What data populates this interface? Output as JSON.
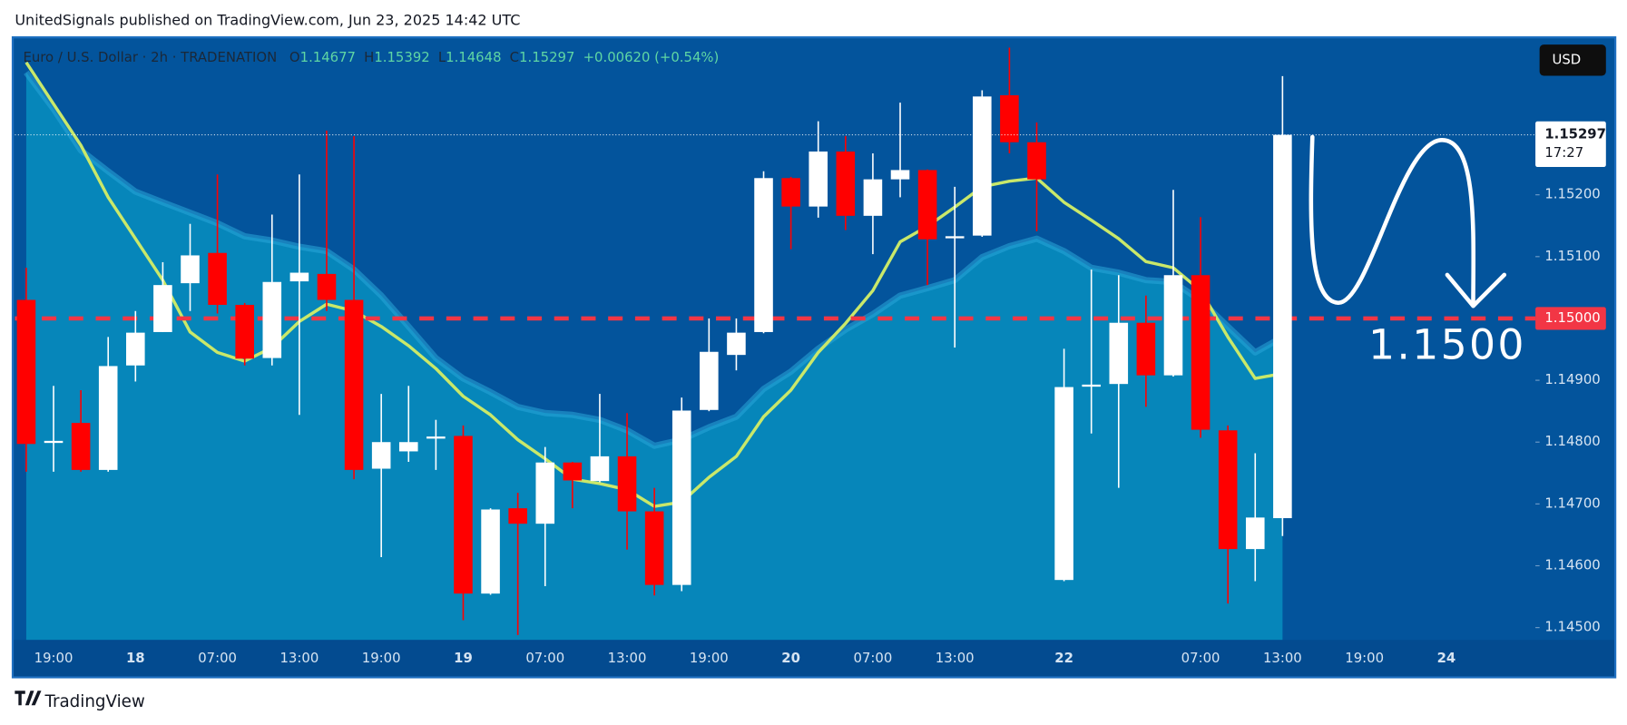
{
  "header": "UnitedSignals published on TradingView.com, Jun 23, 2025 14:42 UTC",
  "footer": "TradingView",
  "chart_data": {
    "type": "candlestick",
    "title": "Euro / U.S. Dollar · 2h · TRADENATION",
    "legend_labels": {
      "open": "O",
      "high": "H",
      "low": "L",
      "close": "C"
    },
    "change": "+0.00620 (+0.54%)",
    "currency": "USD",
    "countdown": "17:27",
    "up_color": "#ffffff",
    "down_color": "#ff0000",
    "categories": [
      null,
      "19:00",
      null,
      null,
      "18",
      null,
      null,
      "07:00",
      null,
      null,
      "13:00",
      null,
      null,
      "19:00",
      null,
      null,
      "19",
      null,
      null,
      "07:00",
      null,
      null,
      "13:00",
      null,
      null,
      "19:00",
      null,
      null,
      "20",
      null,
      null,
      "07:00",
      null,
      null,
      "13:00",
      null,
      null,
      null,
      "22",
      null,
      null,
      null,
      null,
      "07:00",
      null,
      null,
      "13:00",
      null,
      null,
      "19:00",
      null,
      null,
      "24"
    ],
    "open": [
      1.1503,
      1.148,
      1.14831,
      1.14755,
      1.14924,
      1.14978,
      1.15057,
      1.15106,
      1.15022,
      1.14936,
      1.1506,
      1.15072,
      1.1503,
      1.14757,
      1.14785,
      1.14807,
      1.1481,
      1.14555,
      1.14693,
      1.14668,
      1.14767,
      1.14737,
      1.14777,
      1.14688,
      1.14569,
      1.14852,
      1.14941,
      1.14978,
      1.15227,
      1.15181,
      1.1527,
      1.15166,
      1.15225,
      1.1524,
      1.15131,
      1.15134,
      1.15361,
      1.15285,
      1.14577,
      1.14891,
      1.14894,
      1.14993,
      1.14908,
      1.1507,
      1.14819,
      1.14627,
      1.14677,
      null,
      null,
      null,
      null,
      null,
      null
    ],
    "high": [
      1.15082,
      1.14891,
      1.14884,
      1.1497,
      1.15012,
      1.15091,
      1.15153,
      1.15233,
      1.15025,
      1.15168,
      1.15233,
      1.15304,
      1.15295,
      1.14878,
      1.14891,
      1.14836,
      1.14827,
      1.14693,
      1.14718,
      1.14792,
      1.14768,
      1.14878,
      1.14847,
      1.14726,
      1.14872,
      1.15,
      1.15,
      1.15238,
      1.15229,
      1.15319,
      1.15295,
      1.15267,
      1.15349,
      1.15241,
      1.15213,
      1.15369,
      1.15438,
      1.15317,
      1.14951,
      1.15079,
      1.1507,
      1.15037,
      1.15208,
      1.15164,
      1.14827,
      1.14782,
      1.15392,
      null,
      null,
      null,
      null,
      null,
      null
    ],
    "low": [
      1.14752,
      1.14752,
      1.14752,
      1.14752,
      1.14898,
      1.14978,
      1.15012,
      1.15008,
      1.14924,
      1.14924,
      1.14844,
      1.15012,
      1.1474,
      1.14614,
      1.14768,
      1.14755,
      1.14512,
      1.14553,
      1.14488,
      1.14567,
      1.14693,
      1.14735,
      1.14626,
      1.14552,
      1.14559,
      1.1485,
      1.14916,
      1.14976,
      1.15112,
      1.15163,
      1.15143,
      1.15104,
      1.15196,
      1.15054,
      1.14953,
      1.15132,
      1.15267,
      1.15141,
      1.14575,
      1.14814,
      1.14726,
      1.14857,
      1.14906,
      1.14807,
      1.14539,
      1.14575,
      1.14648,
      null,
      null,
      null,
      null,
      null,
      null
    ],
    "close": [
      1.14797,
      1.14802,
      1.14755,
      1.14923,
      1.14977,
      1.15054,
      1.15102,
      1.15022,
      1.14935,
      1.15059,
      1.15074,
      1.1503,
      1.14755,
      1.148,
      1.148,
      1.14809,
      1.14555,
      1.14691,
      1.14668,
      1.14767,
      1.14738,
      1.14777,
      1.14688,
      1.14569,
      1.14851,
      1.14946,
      1.14977,
      1.15227,
      1.15181,
      1.1527,
      1.15166,
      1.15225,
      1.1524,
      1.15128,
      1.15133,
      1.15359,
      1.15285,
      1.15225,
      1.14889,
      1.14893,
      1.14993,
      1.14908,
      1.1507,
      1.1482,
      1.14627,
      1.14678,
      1.15297,
      null,
      null,
      null,
      null,
      null,
      null
    ],
    "series": [
      {
        "type": "area",
        "color": "#0686ba",
        "line_color": "#2aa6d8",
        "values": [
          1.15398,
          1.15339,
          1.15272,
          1.15238,
          1.15205,
          1.15188,
          1.15171,
          1.15154,
          1.15133,
          1.15126,
          1.15116,
          1.15109,
          1.15079,
          1.15037,
          1.14987,
          1.14936,
          1.14903,
          1.14881,
          1.14857,
          1.14847,
          1.14844,
          1.14836,
          1.14819,
          1.14794,
          1.14804,
          1.14824,
          1.14841,
          1.14886,
          1.14914,
          1.14951,
          1.14982,
          1.15007,
          1.15037,
          1.15049,
          1.15062,
          1.15099,
          1.15117,
          1.15129,
          1.15109,
          1.15082,
          1.15074,
          1.15062,
          1.15059,
          1.15029,
          1.14987,
          1.14945,
          1.1497,
          null,
          null,
          null,
          null,
          null,
          null
        ]
      },
      {
        "type": "line",
        "color": "#c9e86a",
        "values": [
          1.15414,
          1.15347,
          1.1528,
          1.15196,
          1.15129,
          1.15062,
          1.14978,
          1.14945,
          1.14931,
          1.14953,
          1.14995,
          1.15023,
          1.15012,
          1.14987,
          1.14956,
          1.14919,
          1.14874,
          1.14844,
          1.14804,
          1.14773,
          1.1474,
          1.14733,
          1.14723,
          1.14696,
          1.14703,
          1.14743,
          1.14777,
          1.14841,
          1.14884,
          1.14945,
          1.14992,
          1.15045,
          1.15124,
          1.15149,
          1.1518,
          1.15213,
          1.15222,
          1.15227,
          1.15188,
          1.15159,
          1.15129,
          1.15092,
          1.15082,
          1.15045,
          1.1497,
          1.14903,
          1.14911,
          null,
          null,
          null,
          null,
          null,
          null
        ]
      }
    ],
    "level": {
      "value": 1.15,
      "label": "1.15000",
      "color": "#f23645"
    },
    "annotation": "1.1500",
    "ylim": [
      1.1448,
      1.15453
    ],
    "yticks": [
      {
        "value": 1.145,
        "label": "1.14500"
      },
      {
        "value": 1.146,
        "label": "1.14600"
      },
      {
        "value": 1.147,
        "label": "1.14700"
      },
      {
        "value": 1.148,
        "label": "1.14800"
      },
      {
        "value": 1.149,
        "label": "1.14900"
      },
      {
        "value": 1.151,
        "label": "1.15100"
      },
      {
        "value": 1.152,
        "label": "1.15200"
      }
    ],
    "grid": false
  }
}
